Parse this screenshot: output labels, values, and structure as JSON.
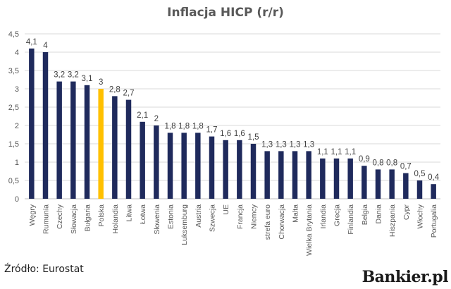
{
  "title": "Inflacja HICP (r/r)",
  "source": "Źródło: Eurostat",
  "brand": "Bankier.pl",
  "colors": {
    "bar": "#1f2a5c",
    "highlight": "#ffc000",
    "grid": "#d9d9d9",
    "axis_text": "#595959"
  },
  "chart_data": {
    "type": "bar",
    "title": "Inflacja HICP (r/r)",
    "xlabel": "",
    "ylabel": "",
    "ylim": [
      0,
      4.5
    ],
    "yticks": [
      "0",
      "0,5",
      "1",
      "1,5",
      "2",
      "2,5",
      "3",
      "3,5",
      "4",
      "4,5"
    ],
    "grid": true,
    "legend": "none",
    "highlight_category": "Polska",
    "categories": [
      "Węgry",
      "Rumunia",
      "Czechy",
      "Słowacja",
      "Bułgaria",
      "Polska",
      "Holandia",
      "Litwa",
      "Łotwa",
      "Słowenia",
      "Estonia",
      "Luksemburg",
      "Austria",
      "Szwecja",
      "UE",
      "Francja",
      "Niemcy",
      "strefa euro",
      "Chorwacja",
      "Malta",
      "Wielka Brytania",
      "Irlandia",
      "Grecja",
      "Finlandia",
      "Belgia",
      "Dania",
      "Hiszpania",
      "Cypr",
      "Włochy",
      "Portugalia"
    ],
    "values": [
      4.1,
      4,
      3.2,
      3.2,
      3.1,
      3,
      2.8,
      2.7,
      2.1,
      2,
      1.8,
      1.8,
      1.8,
      1.7,
      1.6,
      1.6,
      1.5,
      1.3,
      1.3,
      1.3,
      1.3,
      1.1,
      1.1,
      1.1,
      0.9,
      0.8,
      0.8,
      0.7,
      0.5,
      0.4
    ],
    "value_labels": [
      "4,1",
      "4",
      "3,2",
      "3,2",
      "3,1",
      "3",
      "2,8",
      "2,7",
      "2,1",
      "2",
      "1,8",
      "1,8",
      "1,8",
      "1,7",
      "1,6",
      "1,6",
      "1,5",
      "1,3",
      "1,3",
      "1,3",
      "1,3",
      "1,1",
      "1,1",
      "1,1",
      "0,9",
      "0,8",
      "0,8",
      "0,7",
      "0,5",
      "0,4"
    ]
  }
}
